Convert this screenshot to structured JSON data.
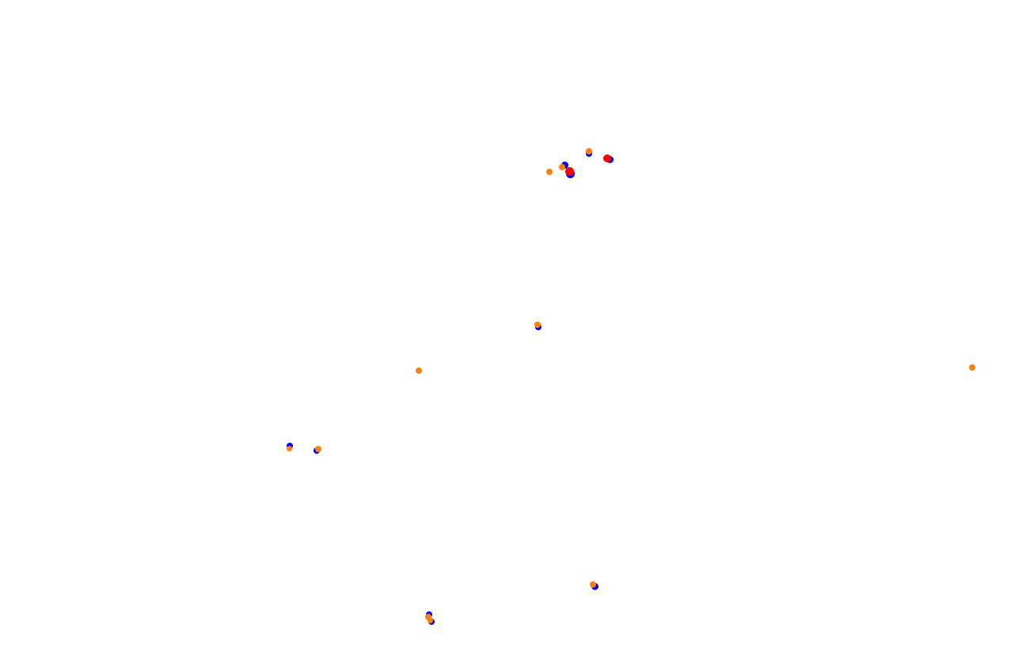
{
  "map": {
    "background": "#ffffff",
    "marker_colors": {
      "blue": "#0000ff",
      "orange": "#ff7f0e",
      "red": "#ff0000"
    }
  }
}
